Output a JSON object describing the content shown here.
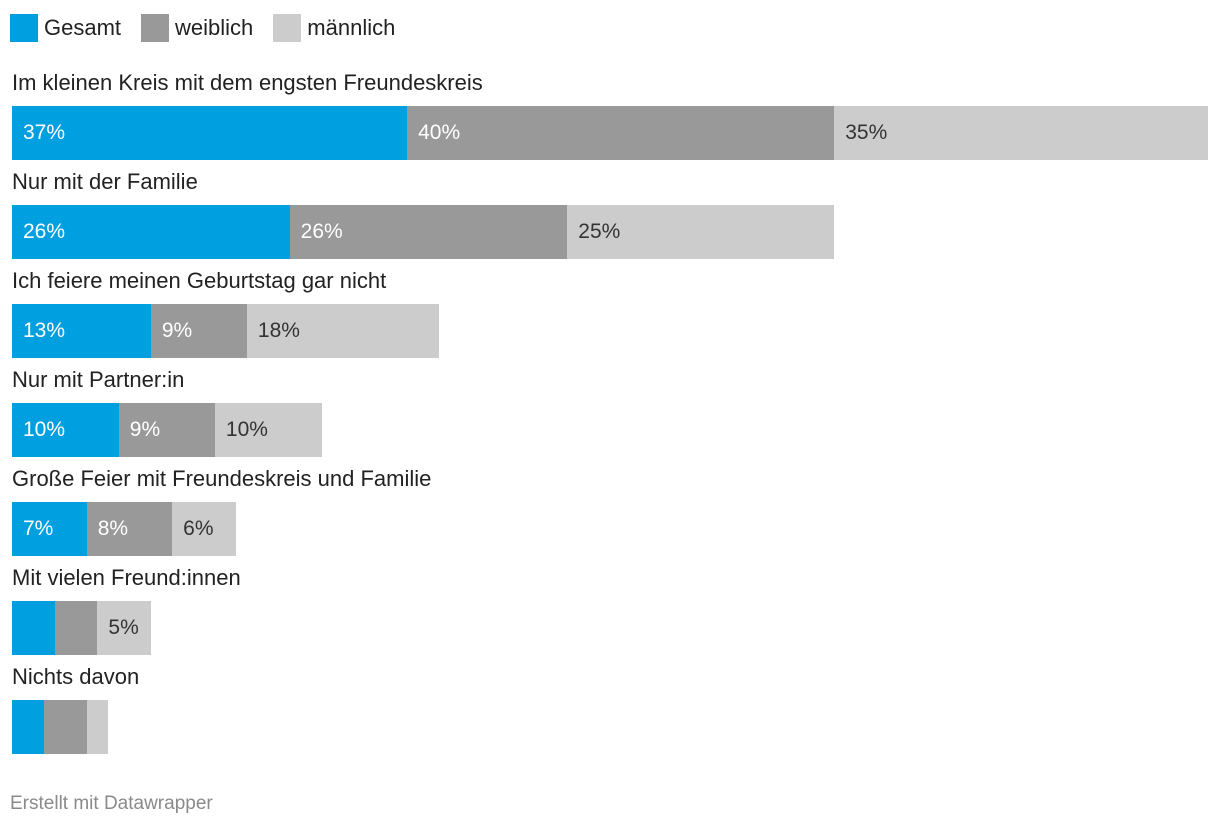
{
  "chart_data": {
    "type": "bar",
    "orientation": "horizontal",
    "stacked": true,
    "legend_position": "top-left",
    "series": [
      {
        "name": "Gesamt",
        "color": "#009fdf",
        "text_color": "#ffffff",
        "values": [
          37,
          26,
          13,
          10,
          7,
          4,
          3
        ],
        "labels": [
          "37%",
          "26%",
          "13%",
          "10%",
          "7%",
          "",
          ""
        ]
      },
      {
        "name": "weiblich",
        "color": "#999999",
        "text_color": "#ffffff",
        "values": [
          40,
          26,
          9,
          9,
          8,
          4,
          4
        ],
        "labels": [
          "40%",
          "26%",
          "9%",
          "9%",
          "8%",
          "",
          ""
        ]
      },
      {
        "name": "männlich",
        "color": "#cccccc",
        "text_color": "#333333",
        "values": [
          35,
          25,
          18,
          10,
          6,
          5,
          2
        ],
        "labels": [
          "35%",
          "25%",
          "18%",
          "10%",
          "6%",
          "5%",
          ""
        ]
      }
    ],
    "categories": [
      "Im kleinen Kreis mit dem engsten Freundeskreis",
      "Nur mit der Familie",
      "Ich feiere meinen Geburtstag gar nicht",
      "Nur mit Partner:in",
      "Große Feier mit Freundeskreis und Familie",
      "Mit vielen Freund:innen",
      "Nichts davon"
    ],
    "max_total": 112,
    "unit": "%"
  },
  "footer": {
    "credit": "Erstellt mit Datawrapper"
  }
}
